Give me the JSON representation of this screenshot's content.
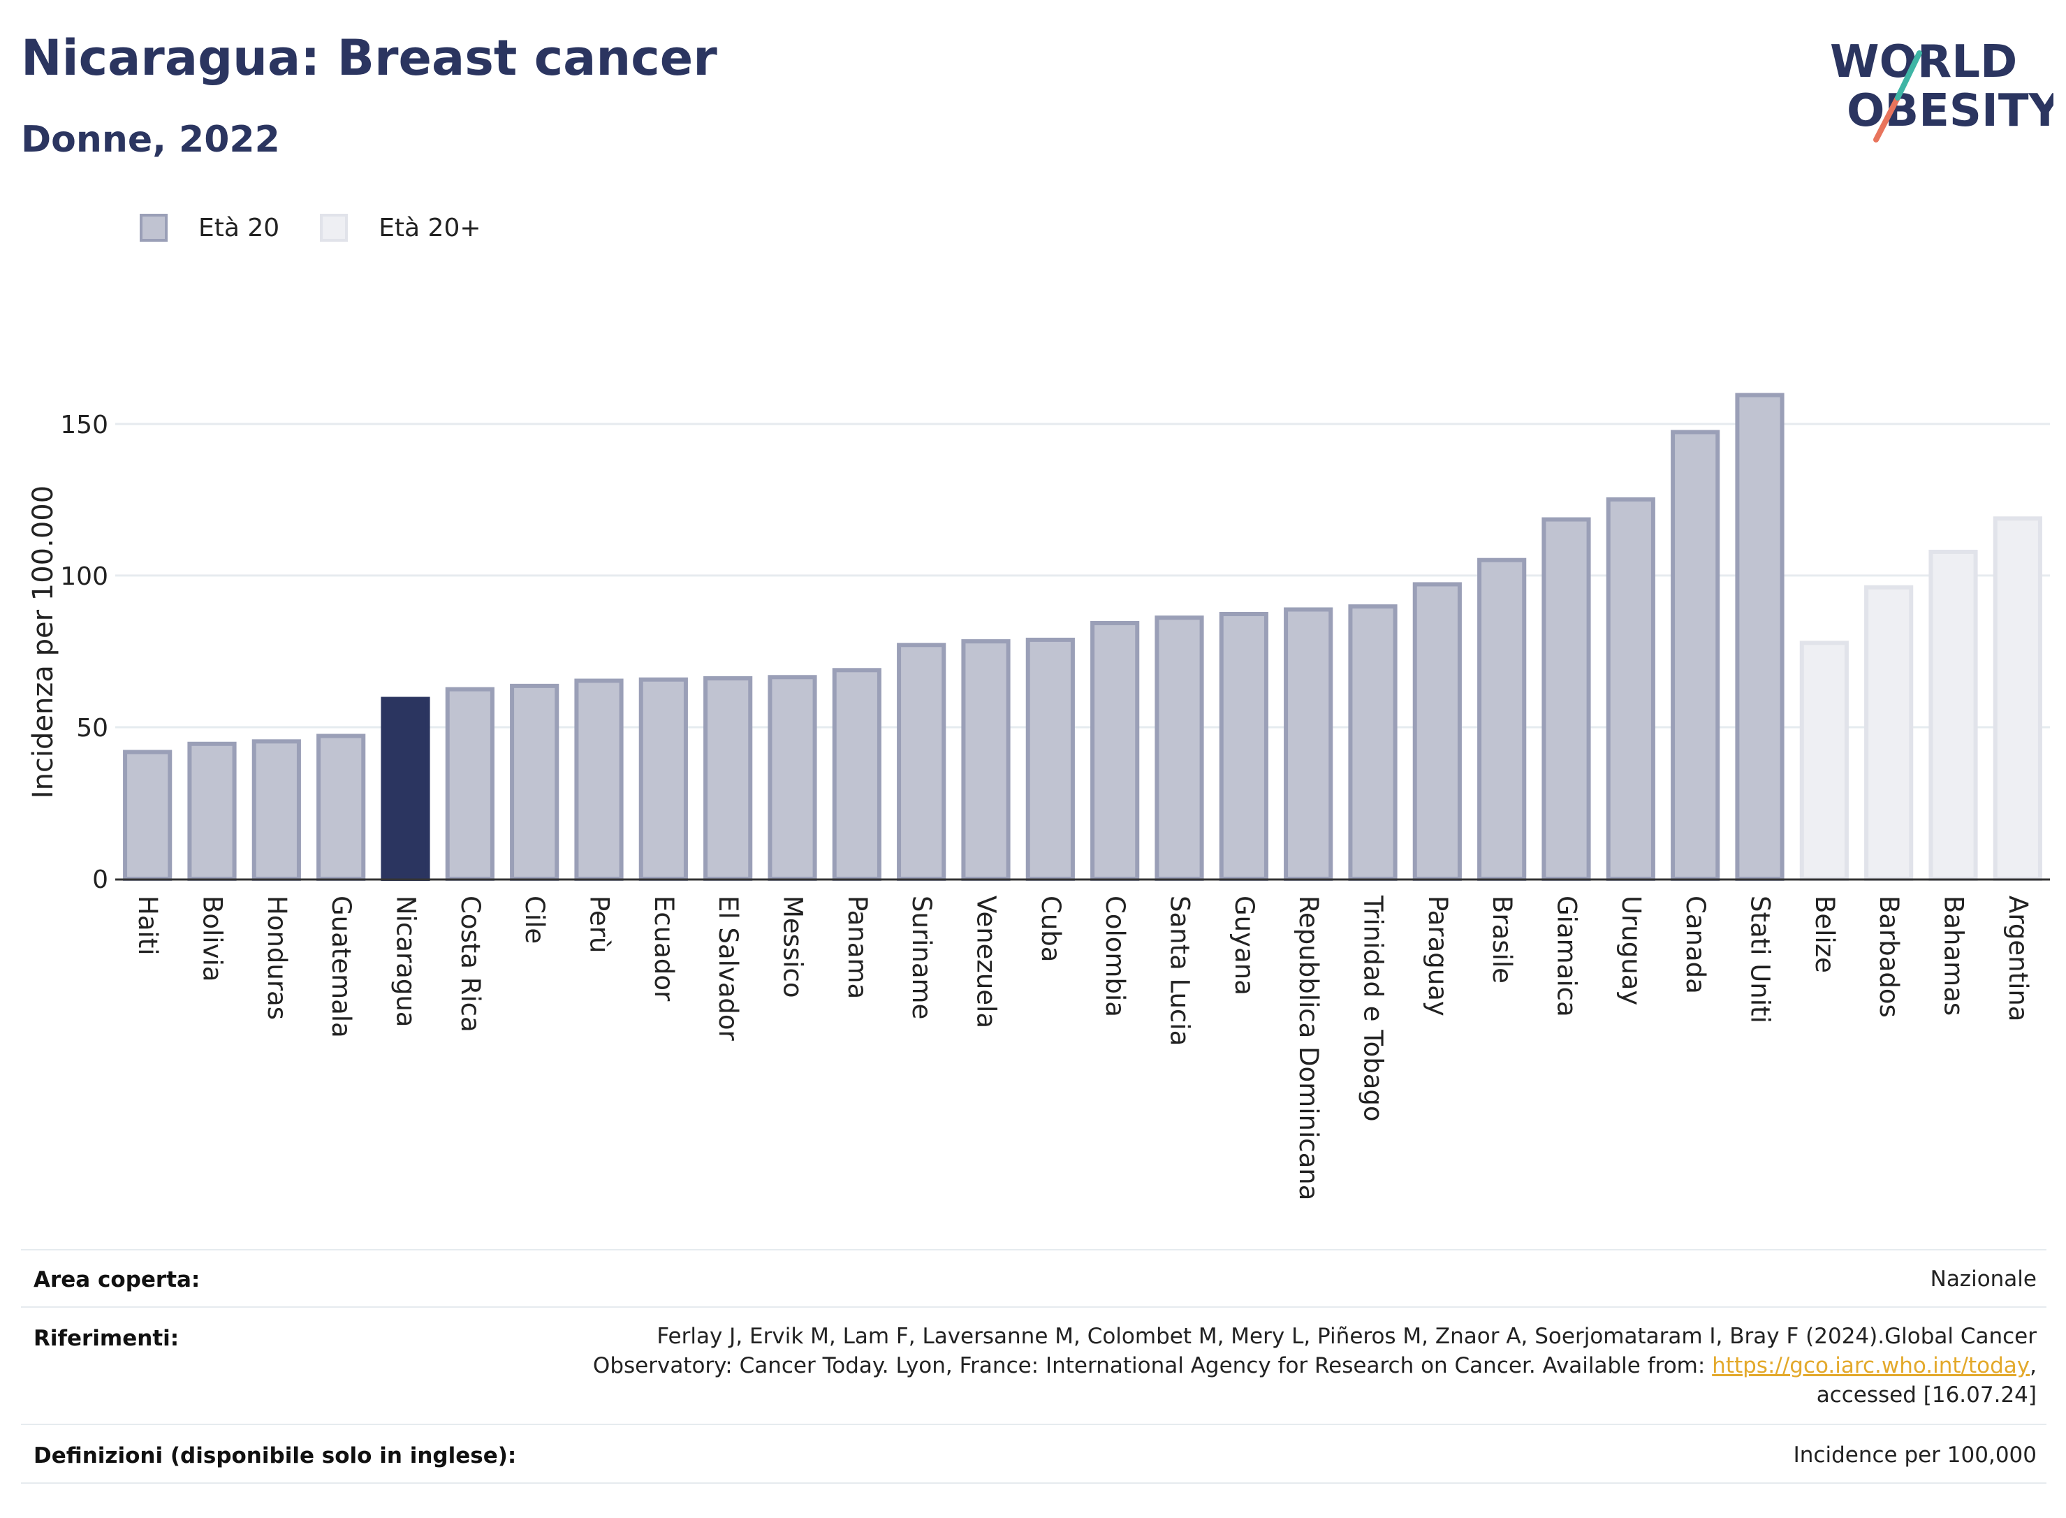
{
  "header": {
    "title": "Nicaragua: Breast cancer",
    "subtitle": "Donne, 2022"
  },
  "logo": {
    "line1": "WORLD",
    "line2": "OBESITY"
  },
  "legend": [
    {
      "label": "Età 20",
      "fill": "#c0c3d1",
      "stroke": "#9a9fb7"
    },
    {
      "label": "Età 20+",
      "fill": "#eeeff3",
      "stroke": "#e1e3ea"
    }
  ],
  "colors": {
    "highlight": "#2b3560",
    "primary_fill": "#c0c3d1",
    "primary_stroke": "#9a9fb7",
    "secondary_fill": "#eeeff3",
    "secondary_stroke": "#e1e3ea",
    "link": "#e3a92b"
  },
  "chart_data": {
    "type": "bar",
    "ylabel": "Incidenza per 100.000",
    "ylim": [
      0,
      170
    ],
    "yticks": [
      0,
      50,
      100,
      150
    ],
    "grid": true,
    "legend_position": "top-left",
    "highlight_category": "Nicaragua",
    "categories": [
      "Haiti",
      "Bolivia",
      "Honduras",
      "Guatemala",
      "Nicaragua",
      "Costa Rica",
      "Cile",
      "Perù",
      "Ecuador",
      "El Salvador",
      "Messico",
      "Panama",
      "Suriname",
      "Venezuela",
      "Cuba",
      "Colombia",
      "Santa Lucia",
      "Guyana",
      "Repubblica Dominicana",
      "Trinidad e Tobago",
      "Paraguay",
      "Brasile",
      "Giamaica",
      "Uruguay",
      "Canada",
      "Stati Uniti",
      "Belize",
      "Barbados",
      "Bahamas",
      "Argentina"
    ],
    "values": [
      42.5,
      45.2,
      46.0,
      47.8,
      60.0,
      63.2,
      64.3,
      66.0,
      66.4,
      66.8,
      67.2,
      69.5,
      77.8,
      79.0,
      79.5,
      85.0,
      86.8,
      88.0,
      89.5,
      90.5,
      97.8,
      105.8,
      119.2,
      125.8,
      148.0,
      160.2,
      78.5,
      96.8,
      108.5,
      119.5
    ],
    "series_group": [
      "Età 20",
      "Età 20",
      "Età 20",
      "Età 20",
      "Età 20",
      "Età 20",
      "Età 20",
      "Età 20",
      "Età 20",
      "Età 20",
      "Età 20",
      "Età 20",
      "Età 20",
      "Età 20",
      "Età 20",
      "Età 20",
      "Età 20",
      "Età 20",
      "Età 20",
      "Età 20",
      "Età 20",
      "Età 20",
      "Età 20",
      "Età 20",
      "Età 20",
      "Età 20",
      "Età 20+",
      "Età 20+",
      "Età 20+",
      "Età 20+"
    ]
  },
  "info": {
    "area_label": "Area coperta:",
    "area_value": "Nazionale",
    "ref_label": "Riferimenti:",
    "ref_text_1": "Ferlay J, Ervik M, Lam F, Laversanne M, Colombet M, Mery L, Piñeros M, Znaor A, Soerjomataram I, Bray F (2024).Global Cancer",
    "ref_text_2": "Observatory: Cancer Today. Lyon, France: International Agency for Research on Cancer. Available from: ",
    "ref_link": "https://gco.iarc.who.int/today",
    "ref_text_3": ",",
    "ref_text_4": "accessed [16.07.24]",
    "def_label": "Definizioni (disponibile solo in inglese):",
    "def_value": "Incidence per 100,000"
  }
}
